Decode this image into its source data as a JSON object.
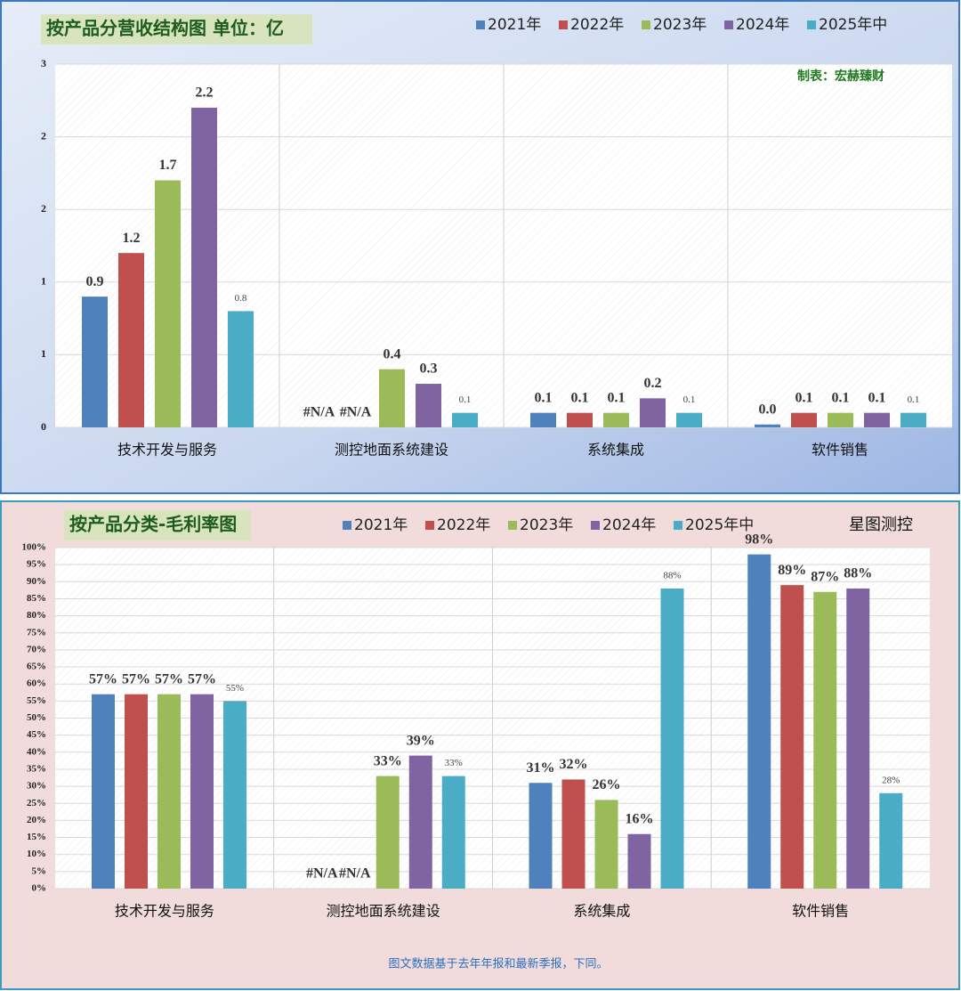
{
  "chart_data": [
    {
      "type": "bar",
      "title": "按产品分营收结构图 单位：亿",
      "annotation": "制表：宏赫臻财",
      "categories": [
        "技术开发与服务",
        "测控地面系统建设",
        "系统集成",
        "软件销售"
      ],
      "series": [
        {
          "name": "2021年",
          "color": "#4f81bd",
          "values": [
            0.9,
            null,
            0.1,
            0.02
          ],
          "value_labels": [
            "0.9",
            "#N/A",
            "0.1",
            "0.0"
          ]
        },
        {
          "name": "2022年",
          "color": "#c0504d",
          "values": [
            1.2,
            null,
            0.1,
            0.1
          ],
          "value_labels": [
            "1.2",
            "#N/A",
            "0.1",
            "0.1"
          ]
        },
        {
          "name": "2023年",
          "color": "#9bbb59",
          "values": [
            1.7,
            0.4,
            0.1,
            0.1
          ],
          "value_labels": [
            "1.7",
            "0.4",
            "0.1",
            "0.1"
          ]
        },
        {
          "name": "2024年",
          "color": "#8064a2",
          "values": [
            2.2,
            0.3,
            0.2,
            0.1
          ],
          "value_labels": [
            "2.2",
            "0.3",
            "0.2",
            "0.1"
          ]
        },
        {
          "name": "2025年中",
          "color": "#4bacc6",
          "values": [
            0.8,
            0.1,
            0.1,
            0.1
          ],
          "value_labels": [
            "0.8",
            "0.1",
            "0.1",
            "0.1"
          ]
        }
      ],
      "ylim": [
        0,
        2.5
      ],
      "yticks": [
        0,
        {
          "value": 0.5,
          "label": "1"
        },
        {
          "value": 1,
          "label": "1"
        },
        {
          "value": 1.5,
          "label": "2"
        },
        {
          "value": 2,
          "label": "2"
        },
        {
          "value": 2.5,
          "label": "3"
        }
      ],
      "grid": true
    },
    {
      "type": "bar",
      "title": "按产品分类-毛利率图",
      "annotation": "星图测控",
      "note": "图文数据基于去年年报和最新季报，下同。",
      "categories": [
        "技术开发与服务",
        "测控地面系统建设",
        "系统集成",
        "软件销售"
      ],
      "series": [
        {
          "name": "2021年",
          "color": "#4f81bd",
          "values": [
            57,
            null,
            31,
            98
          ],
          "value_labels": [
            "57%",
            "#N/A",
            "31%",
            "98%"
          ]
        },
        {
          "name": "2022年",
          "color": "#c0504d",
          "values": [
            57,
            null,
            32,
            89
          ],
          "value_labels": [
            "57%",
            "#N/A",
            "32%",
            "89%"
          ]
        },
        {
          "name": "2023年",
          "color": "#9bbb59",
          "values": [
            57,
            33,
            26,
            87
          ],
          "value_labels": [
            "57%",
            "33%",
            "26%",
            "87%"
          ]
        },
        {
          "name": "2024年",
          "color": "#8064a2",
          "values": [
            57,
            39,
            16,
            88
          ],
          "value_labels": [
            "57%",
            "39%",
            "16%",
            "88%"
          ]
        },
        {
          "name": "2025年中",
          "color": "#4bacc6",
          "values": [
            55,
            33,
            88,
            28
          ],
          "value_labels": [
            "55%",
            "33%",
            "88%",
            "28%"
          ]
        }
      ],
      "ylim": [
        0,
        100
      ],
      "yticks": [
        {
          "value": 0,
          "label": "0%"
        },
        {
          "value": 5,
          "label": "5%"
        },
        {
          "value": 10,
          "label": "10%"
        },
        {
          "value": 15,
          "label": "15%"
        },
        {
          "value": 20,
          "label": "20%"
        },
        {
          "value": 25,
          "label": "25%"
        },
        {
          "value": 30,
          "label": "30%"
        },
        {
          "value": 35,
          "label": "35%"
        },
        {
          "value": 40,
          "label": "40%"
        },
        {
          "value": 45,
          "label": "45%"
        },
        {
          "value": 50,
          "label": "50%"
        },
        {
          "value": 55,
          "label": "55%"
        },
        {
          "value": 60,
          "label": "60%"
        },
        {
          "value": 65,
          "label": "65%"
        },
        {
          "value": 70,
          "label": "70%"
        },
        {
          "value": 75,
          "label": "75%"
        },
        {
          "value": 80,
          "label": "80%"
        },
        {
          "value": 85,
          "label": "85%"
        },
        {
          "value": 90,
          "label": "90%"
        },
        {
          "value": 95,
          "label": "95%"
        },
        {
          "value": 100,
          "label": "100%"
        }
      ],
      "grid": true
    }
  ]
}
